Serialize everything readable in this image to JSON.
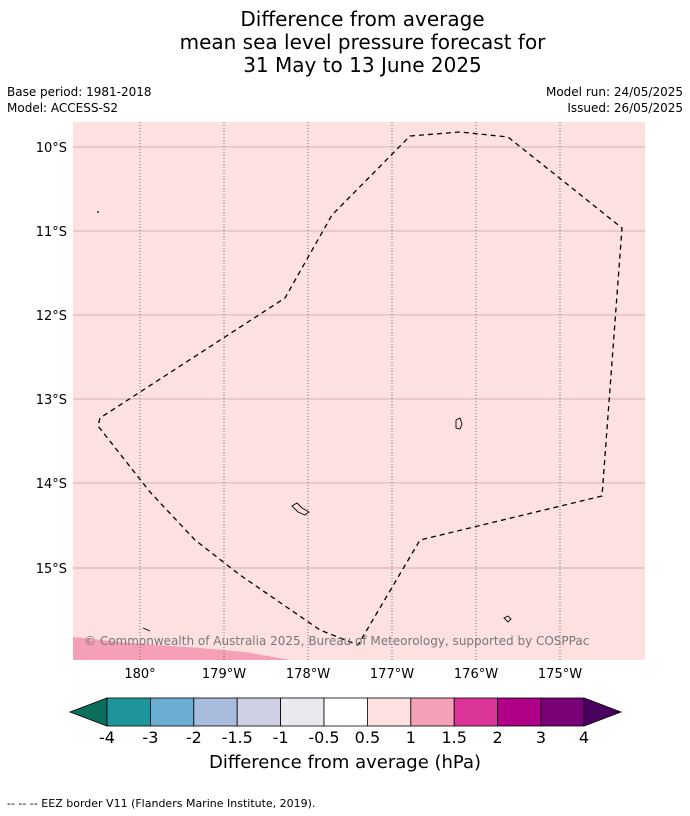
{
  "title": {
    "line1": "Difference from average",
    "line2": "mean sea level pressure forecast for",
    "line3": "31 May to 13 June 2025"
  },
  "meta": {
    "base_period": "Base period: 1981-2018",
    "model": "Model: ACCESS-S2",
    "model_run": "Model run: 24/05/2025",
    "issued": "Issued: 26/05/2025"
  },
  "map": {
    "background_color": "#fde0e0",
    "lat_labels": [
      "10°S",
      "11°S",
      "12°S",
      "13°S",
      "14°S",
      "15°S"
    ],
    "lon_labels": [
      "180°",
      "179°W",
      "178°W",
      "177°W",
      "176°W",
      "175°W"
    ],
    "copyright": "© Commonwealth of Australia 2025, Bureau of Meteorology, supported by COSPPac"
  },
  "colorbar": {
    "tick_labels": [
      "-4",
      "-3",
      "-2",
      "-1.5",
      "-1",
      "-0.5",
      "0.5",
      "1",
      "1.5",
      "2",
      "3",
      "4"
    ],
    "colors": [
      "#0e6e5e",
      "#1e959a",
      "#6aaed4",
      "#a8bcde",
      "#cfd0e6",
      "#ebe8ee",
      "#ffffff",
      "#fde0e0",
      "#f6a0b8",
      "#dc359a",
      "#b00088",
      "#7a0078",
      "#4a0060"
    ],
    "label": "Difference from average (hPa)"
  },
  "footnote": "--  --  -- EEZ border V11 (Flanders Marine Institute, 2019)."
}
